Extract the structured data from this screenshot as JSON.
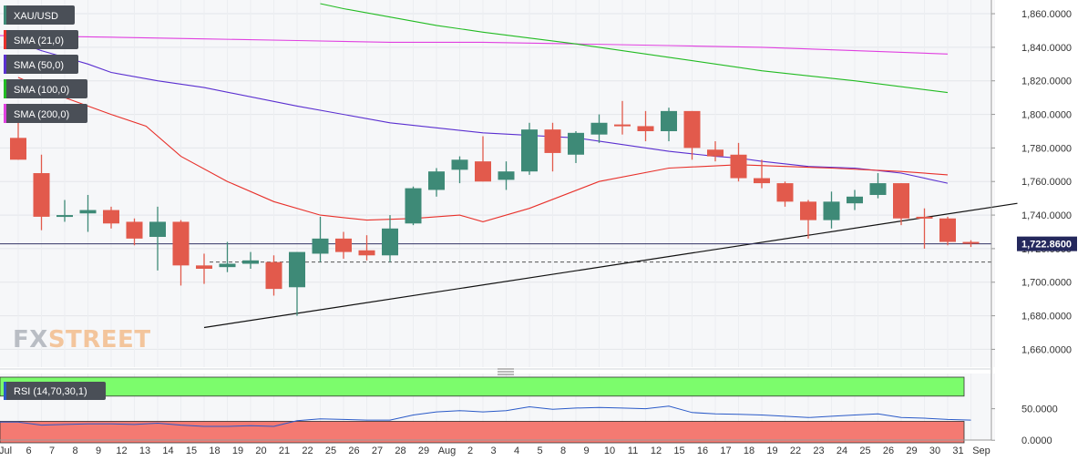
{
  "chart_data": {
    "type": "candlestick",
    "title": "",
    "instrument": "XAU/USD",
    "colors": {
      "up": "#3e8a77",
      "down": "#e25a4c",
      "sma21": "#e8302a",
      "sma50": "#5a2fd0",
      "sma100": "#22bb22",
      "sma200": "#e040e0",
      "rsi_upper_band": "#7cfc6c",
      "rsi_lower_band": "#f47a72",
      "rsi_line": "#2a5ac8",
      "trendline": "#111111",
      "price_line": "#333366"
    },
    "legend": [
      {
        "id": "xau",
        "label": "XAU/USD",
        "swatch": "#3e8a77"
      },
      {
        "id": "sma21",
        "label": "SMA (21,0)",
        "swatch": "#e8302a"
      },
      {
        "id": "sma50",
        "label": "SMA (50,0)",
        "swatch": "#5a2fd0"
      },
      {
        "id": "sma100",
        "label": "SMA (100,0)",
        "swatch": "#22bb22"
      },
      {
        "id": "sma200",
        "label": "SMA (200,0)",
        "swatch": "#e040e0"
      }
    ],
    "x_tick_labels": [
      "Jul",
      "6",
      "7",
      "8",
      "9",
      "12",
      "13",
      "14",
      "15",
      "18",
      "19",
      "20",
      "21",
      "22",
      "25",
      "26",
      "27",
      "28",
      "29",
      "Aug",
      "2",
      "3",
      "4",
      "5",
      "8",
      "9",
      "10",
      "11",
      "12",
      "15",
      "16",
      "17",
      "18",
      "19",
      "22",
      "23",
      "24",
      "25",
      "26",
      "29",
      "30",
      "31",
      "Sep"
    ],
    "y_ticks": [
      1660,
      1680,
      1700,
      1720,
      1740,
      1760,
      1780,
      1800,
      1820,
      1840,
      1860
    ],
    "y_tick_labels": [
      "1,660.0000",
      "1,680.0000",
      "1,700.0000",
      "1,720.0000",
      "1,740.0000",
      "1,760.0000",
      "1,780.0000",
      "1,800.0000",
      "1,820.0000",
      "1,840.0000",
      "1,860.0000"
    ],
    "ylim": [
      1651,
      1866
    ],
    "last_price": 1722.86,
    "last_price_label": "1,722.8600",
    "dashed_level": 1712,
    "candles": [
      {
        "x": "Jul",
        "o": 1786,
        "h": 1796,
        "l": 1773,
        "c": 1773
      },
      {
        "x": "6",
        "o": 1765,
        "h": 1776,
        "l": 1731,
        "c": 1739
      },
      {
        "x": "7",
        "o": 1739,
        "h": 1749,
        "l": 1736,
        "c": 1740
      },
      {
        "x": "8",
        "o": 1741,
        "h": 1752,
        "l": 1730,
        "c": 1743
      },
      {
        "x": "9",
        "o": 1743,
        "h": 1745,
        "l": 1732,
        "c": 1735
      },
      {
        "x": "12",
        "o": 1736,
        "h": 1738,
        "l": 1722,
        "c": 1726
      },
      {
        "x": "13",
        "o": 1727,
        "h": 1745,
        "l": 1707,
        "c": 1736
      },
      {
        "x": "14",
        "o": 1736,
        "h": 1737,
        "l": 1698,
        "c": 1710
      },
      {
        "x": "15",
        "o": 1710,
        "h": 1717,
        "l": 1699,
        "c": 1708
      },
      {
        "x": "18",
        "o": 1709,
        "h": 1724,
        "l": 1706,
        "c": 1711
      },
      {
        "x": "19",
        "o": 1711,
        "h": 1718,
        "l": 1708,
        "c": 1713
      },
      {
        "x": "20",
        "o": 1712,
        "h": 1716,
        "l": 1692,
        "c": 1696
      },
      {
        "x": "21",
        "o": 1697,
        "h": 1718,
        "l": 1680,
        "c": 1718
      },
      {
        "x": "22",
        "o": 1717,
        "h": 1739,
        "l": 1712,
        "c": 1726
      },
      {
        "x": "25",
        "o": 1726,
        "h": 1730,
        "l": 1714,
        "c": 1718
      },
      {
        "x": "26",
        "o": 1719,
        "h": 1728,
        "l": 1713,
        "c": 1716
      },
      {
        "x": "27",
        "o": 1716,
        "h": 1740,
        "l": 1712,
        "c": 1732
      },
      {
        "x": "28",
        "o": 1735,
        "h": 1757,
        "l": 1734,
        "c": 1756
      },
      {
        "x": "29",
        "o": 1755,
        "h": 1768,
        "l": 1751,
        "c": 1766
      },
      {
        "x": "Aug",
        "o": 1767,
        "h": 1775,
        "l": 1759,
        "c": 1773
      },
      {
        "x": "2",
        "o": 1772,
        "h": 1787,
        "l": 1760,
        "c": 1760
      },
      {
        "x": "3",
        "o": 1761,
        "h": 1772,
        "l": 1755,
        "c": 1766
      },
      {
        "x": "4",
        "o": 1766,
        "h": 1795,
        "l": 1764,
        "c": 1791
      },
      {
        "x": "5",
        "o": 1791,
        "h": 1795,
        "l": 1766,
        "c": 1777
      },
      {
        "x": "8",
        "o": 1776,
        "h": 1790,
        "l": 1771,
        "c": 1789
      },
      {
        "x": "9",
        "o": 1788,
        "h": 1800,
        "l": 1783,
        "c": 1795
      },
      {
        "x": "10",
        "o": 1794,
        "h": 1808,
        "l": 1788,
        "c": 1793
      },
      {
        "x": "11",
        "o": 1793,
        "h": 1802,
        "l": 1784,
        "c": 1790
      },
      {
        "x": "12",
        "o": 1790,
        "h": 1804,
        "l": 1784,
        "c": 1802
      },
      {
        "x": "15",
        "o": 1802,
        "h": 1802,
        "l": 1773,
        "c": 1780
      },
      {
        "x": "16",
        "o": 1779,
        "h": 1784,
        "l": 1772,
        "c": 1775
      },
      {
        "x": "17",
        "o": 1776,
        "h": 1783,
        "l": 1760,
        "c": 1762
      },
      {
        "x": "18",
        "o": 1762,
        "h": 1773,
        "l": 1756,
        "c": 1759
      },
      {
        "x": "19",
        "o": 1759,
        "h": 1760,
        "l": 1745,
        "c": 1748
      },
      {
        "x": "22",
        "o": 1748,
        "h": 1749,
        "l": 1726,
        "c": 1737
      },
      {
        "x": "23",
        "o": 1737,
        "h": 1754,
        "l": 1732,
        "c": 1748
      },
      {
        "x": "24",
        "o": 1747,
        "h": 1755,
        "l": 1743,
        "c": 1751
      },
      {
        "x": "25",
        "o": 1752,
        "h": 1765,
        "l": 1750,
        "c": 1759
      },
      {
        "x": "26",
        "o": 1759,
        "h": 1759,
        "l": 1734,
        "c": 1738
      },
      {
        "x": "29",
        "o": 1739,
        "h": 1744,
        "l": 1720,
        "c": 1738
      },
      {
        "x": "30",
        "o": 1738,
        "h": 1739,
        "l": 1722,
        "c": 1724
      },
      {
        "x": "31",
        "o": 1724,
        "h": 1725,
        "l": 1721,
        "c": 1723
      }
    ],
    "sma21": [
      [
        0,
        1822
      ],
      [
        2,
        1810
      ],
      [
        4,
        1800
      ],
      [
        5.5,
        1793
      ],
      [
        7,
        1775
      ],
      [
        9,
        1760
      ],
      [
        11,
        1748
      ],
      [
        13,
        1740
      ],
      [
        15,
        1737
      ],
      [
        17,
        1738
      ],
      [
        19,
        1740
      ],
      [
        20,
        1736
      ],
      [
        22,
        1744
      ],
      [
        25,
        1760
      ],
      [
        28,
        1768
      ],
      [
        31,
        1770
      ],
      [
        35,
        1768
      ],
      [
        38,
        1766
      ],
      [
        40,
        1764
      ]
    ],
    "sma50": [
      [
        0,
        1843
      ],
      [
        1,
        1838
      ],
      [
        2,
        1834
      ],
      [
        3,
        1830
      ],
      [
        4,
        1825
      ],
      [
        6,
        1820
      ],
      [
        8,
        1816
      ],
      [
        12,
        1805
      ],
      [
        16,
        1795
      ],
      [
        20,
        1789
      ],
      [
        24,
        1786
      ],
      [
        28,
        1778
      ],
      [
        30,
        1775
      ],
      [
        31,
        1774
      ],
      [
        32,
        1772
      ],
      [
        34,
        1769
      ],
      [
        36,
        1768
      ],
      [
        38,
        1765
      ],
      [
        40,
        1759
      ]
    ],
    "sma100": [
      [
        13,
        1866
      ],
      [
        14,
        1863
      ],
      [
        16,
        1858
      ],
      [
        18,
        1853
      ],
      [
        20,
        1849
      ],
      [
        24,
        1842
      ],
      [
        28,
        1834
      ],
      [
        32,
        1826
      ],
      [
        36,
        1820
      ],
      [
        40,
        1813
      ]
    ],
    "sma200": [
      [
        -1,
        1847
      ],
      [
        4,
        1846
      ],
      [
        8,
        1845
      ],
      [
        12,
        1844
      ],
      [
        16,
        1843
      ],
      [
        20,
        1843
      ],
      [
        24,
        1842
      ],
      [
        28,
        1841
      ],
      [
        32,
        1840
      ],
      [
        36,
        1838
      ],
      [
        40,
        1836
      ]
    ],
    "trendline": [
      [
        8,
        1673
      ],
      [
        43,
        1747
      ]
    ],
    "rsi": {
      "label": "RSI (14,70,30,1)",
      "overbought": 70,
      "oversold": 30,
      "ylim": [
        -4,
        100
      ],
      "y_ticks": [
        0,
        50
      ],
      "y_tick_labels": [
        "0.0000",
        "50.0000"
      ],
      "values": [
        29,
        24,
        25,
        26,
        26,
        25,
        27,
        24,
        22,
        22,
        23,
        22,
        31,
        34,
        33,
        32,
        32,
        40,
        45,
        47,
        45,
        47,
        53,
        49,
        51,
        52,
        51,
        50,
        54,
        44,
        42,
        41,
        40,
        38,
        36,
        38,
        40,
        42,
        36,
        35,
        33,
        32
      ]
    }
  },
  "watermark": "FXSTREET"
}
